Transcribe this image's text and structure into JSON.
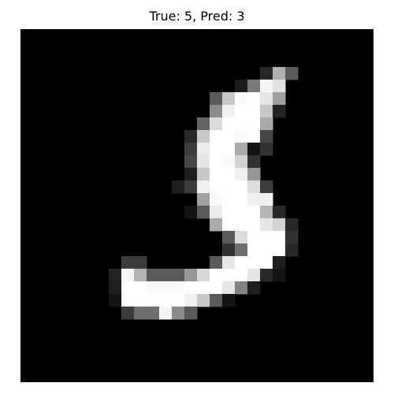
{
  "figure": {
    "title": "True: 5, Pred: 3"
  },
  "image": {
    "grid_rows": 28,
    "grid_cols": 28,
    "background_color": "#000000",
    "cells": [
      [
        3,
        19,
        40
      ],
      [
        3,
        20,
        175
      ],
      [
        3,
        21,
        90
      ],
      [
        4,
        17,
        28
      ],
      [
        4,
        18,
        120
      ],
      [
        4,
        19,
        245
      ],
      [
        4,
        20,
        225
      ],
      [
        5,
        15,
        90
      ],
      [
        5,
        16,
        200
      ],
      [
        5,
        17,
        250
      ],
      [
        5,
        18,
        255
      ],
      [
        5,
        19,
        230
      ],
      [
        5,
        20,
        160
      ],
      [
        6,
        15,
        140
      ],
      [
        6,
        16,
        240
      ],
      [
        6,
        17,
        255
      ],
      [
        6,
        18,
        255
      ],
      [
        6,
        19,
        200
      ],
      [
        6,
        20,
        35
      ],
      [
        7,
        14,
        100
      ],
      [
        7,
        15,
        220
      ],
      [
        7,
        16,
        255
      ],
      [
        7,
        17,
        255
      ],
      [
        7,
        18,
        255
      ],
      [
        7,
        19,
        170
      ],
      [
        8,
        13,
        40
      ],
      [
        8,
        14,
        200
      ],
      [
        8,
        15,
        255
      ],
      [
        8,
        16,
        255
      ],
      [
        8,
        17,
        250
      ],
      [
        8,
        18,
        255
      ],
      [
        8,
        19,
        70
      ],
      [
        9,
        13,
        60
      ],
      [
        9,
        14,
        235
      ],
      [
        9,
        15,
        255
      ],
      [
        9,
        16,
        255
      ],
      [
        9,
        17,
        170
      ],
      [
        9,
        18,
        20
      ],
      [
        9,
        19,
        50
      ],
      [
        10,
        13,
        70
      ],
      [
        10,
        14,
        230
      ],
      [
        10,
        15,
        255
      ],
      [
        10,
        16,
        250
      ],
      [
        10,
        17,
        210
      ],
      [
        10,
        18,
        50
      ],
      [
        11,
        13,
        30
      ],
      [
        11,
        14,
        200
      ],
      [
        11,
        15,
        255
      ],
      [
        11,
        16,
        255
      ],
      [
        11,
        17,
        240
      ],
      [
        11,
        18,
        150
      ],
      [
        12,
        12,
        30
      ],
      [
        12,
        13,
        60
      ],
      [
        12,
        14,
        240
      ],
      [
        12,
        15,
        255
      ],
      [
        12,
        16,
        255
      ],
      [
        12,
        17,
        255
      ],
      [
        12,
        18,
        220
      ],
      [
        12,
        19,
        60
      ],
      [
        13,
        14,
        160
      ],
      [
        13,
        15,
        250
      ],
      [
        13,
        16,
        255
      ],
      [
        13,
        17,
        255
      ],
      [
        13,
        18,
        240
      ],
      [
        13,
        19,
        240
      ],
      [
        14,
        13,
        20
      ],
      [
        14,
        14,
        90
      ],
      [
        14,
        15,
        235
      ],
      [
        14,
        16,
        255
      ],
      [
        14,
        17,
        255
      ],
      [
        14,
        18,
        255
      ],
      [
        14,
        19,
        180
      ],
      [
        14,
        20,
        40
      ],
      [
        15,
        15,
        170
      ],
      [
        15,
        16,
        255
      ],
      [
        15,
        17,
        255
      ],
      [
        15,
        18,
        255
      ],
      [
        15,
        19,
        230
      ],
      [
        15,
        20,
        210
      ],
      [
        15,
        21,
        40
      ],
      [
        16,
        16,
        90
      ],
      [
        16,
        17,
        220
      ],
      [
        16,
        18,
        255
      ],
      [
        16,
        19,
        255
      ],
      [
        16,
        20,
        255
      ],
      [
        16,
        21,
        50
      ],
      [
        17,
        16,
        50
      ],
      [
        17,
        17,
        110
      ],
      [
        17,
        18,
        255
      ],
      [
        17,
        19,
        255
      ],
      [
        17,
        20,
        255
      ],
      [
        17,
        21,
        40
      ],
      [
        18,
        8,
        60
      ],
      [
        18,
        9,
        60
      ],
      [
        18,
        15,
        90
      ],
      [
        18,
        16,
        230
      ],
      [
        18,
        17,
        255
      ],
      [
        18,
        18,
        255
      ],
      [
        18,
        19,
        255
      ],
      [
        18,
        20,
        30
      ],
      [
        19,
        7,
        35
      ],
      [
        19,
        8,
        245
      ],
      [
        19,
        9,
        180
      ],
      [
        19,
        10,
        90
      ],
      [
        19,
        11,
        90
      ],
      [
        19,
        12,
        90
      ],
      [
        19,
        13,
        150
      ],
      [
        19,
        14,
        215
      ],
      [
        19,
        15,
        255
      ],
      [
        19,
        16,
        255
      ],
      [
        19,
        17,
        255
      ],
      [
        19,
        18,
        230
      ],
      [
        19,
        19,
        40
      ],
      [
        19,
        20,
        20
      ],
      [
        20,
        7,
        30
      ],
      [
        20,
        8,
        255
      ],
      [
        20,
        9,
        255
      ],
      [
        20,
        10,
        250
      ],
      [
        20,
        11,
        250
      ],
      [
        20,
        12,
        250
      ],
      [
        20,
        13,
        255
      ],
      [
        20,
        14,
        255
      ],
      [
        20,
        15,
        255
      ],
      [
        20,
        16,
        230
      ],
      [
        20,
        17,
        130
      ],
      [
        20,
        18,
        30
      ],
      [
        21,
        7,
        20
      ],
      [
        21,
        8,
        255
      ],
      [
        21,
        9,
        255
      ],
      [
        21,
        10,
        255
      ],
      [
        21,
        11,
        255
      ],
      [
        21,
        12,
        255
      ],
      [
        21,
        13,
        240
      ],
      [
        21,
        14,
        200
      ],
      [
        21,
        15,
        90
      ],
      [
        21,
        16,
        20
      ],
      [
        22,
        8,
        60
      ],
      [
        22,
        9,
        110
      ],
      [
        22,
        10,
        110
      ],
      [
        22,
        11,
        245
      ],
      [
        22,
        12,
        140
      ],
      [
        22,
        13,
        90
      ]
    ]
  }
}
